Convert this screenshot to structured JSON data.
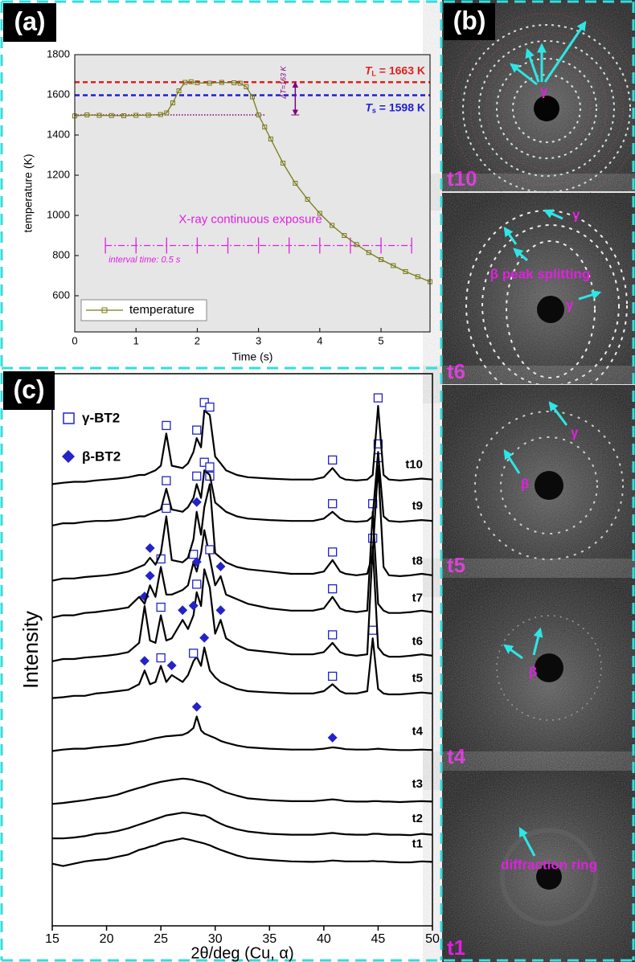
{
  "panel_labels": {
    "a": "(a)",
    "b": "(b)",
    "c": "(c)"
  },
  "chart_data": [
    {
      "type": "line",
      "x_label": "Time (s)",
      "y_label": "temperature (K)",
      "xlim": [
        0,
        5.8
      ],
      "ylim": [
        420,
        1800
      ],
      "xticks": [
        0,
        1,
        2,
        3,
        4,
        5
      ],
      "yticks": [
        600,
        800,
        1000,
        1200,
        1400,
        1600,
        1800
      ],
      "background": "#e6e6e6",
      "legend": "lower left",
      "series": [
        {
          "name": "temperature",
          "color": "#7a7a1a",
          "x": [
            0,
            0.2,
            0.4,
            0.6,
            0.8,
            1.0,
            1.2,
            1.4,
            1.5,
            1.6,
            1.7,
            1.8,
            1.9,
            2.0,
            2.2,
            2.4,
            2.6,
            2.7,
            2.8,
            2.9,
            3.0,
            3.1,
            3.2,
            3.4,
            3.6,
            3.8,
            4.0,
            4.2,
            4.4,
            4.6,
            4.8,
            5.0,
            5.2,
            5.4,
            5.6,
            5.8
          ],
          "values": [
            1495,
            1500,
            1498,
            1497,
            1496,
            1498,
            1499,
            1502,
            1510,
            1560,
            1620,
            1662,
            1665,
            1660,
            1658,
            1662,
            1660,
            1658,
            1640,
            1590,
            1500,
            1440,
            1380,
            1260,
            1160,
            1080,
            1010,
            950,
            900,
            855,
            815,
            780,
            750,
            720,
            695,
            670
          ]
        }
      ],
      "reference_lines": [
        {
          "label": "T",
          "label_sub": "L",
          "label_rest": " = 1663 K",
          "value": 1663,
          "color": "#e02020"
        },
        {
          "label": "T",
          "label_sub": "s",
          "label_rest": " = 1598 K",
          "value": 1598,
          "color": "#2020d0"
        },
        {
          "value": 1500,
          "color": "#800080",
          "xlim": [
            0,
            3.1
          ]
        }
      ],
      "delta_t": {
        "label": "ΔT=163 K",
        "range": [
          1500,
          1663
        ],
        "x": 3.6,
        "color": "#800080"
      },
      "exposure": {
        "label": "X-ray continuous exposure",
        "note": "interval time: 0.5 s",
        "y": 850,
        "xlim": [
          0.5,
          5.5
        ],
        "ticks": [
          0.5,
          1,
          1.5,
          2,
          2.5,
          3,
          3.5,
          4,
          4.5,
          5,
          5.5
        ],
        "color": "#e020e0"
      }
    },
    {
      "type": "waterfall",
      "x_label": "2θ/deg (Cu, α)",
      "y_label": "Intensity",
      "xlim": [
        15,
        50
      ],
      "ylim": [
        0,
        12
      ],
      "xticks": [
        15,
        20,
        25,
        30,
        35,
        40,
        45,
        50
      ],
      "legend": [
        {
          "name": "γ-BT2",
          "marker": "square",
          "color": "#2323c8"
        },
        {
          "name": "β-BT2",
          "marker": "diamond",
          "color": "#2323c8"
        }
      ],
      "x": [
        15,
        16,
        17,
        18,
        19,
        20,
        21,
        22,
        23,
        23.5,
        24,
        24.5,
        25,
        25.5,
        26,
        27,
        27.5,
        28,
        28.3,
        28.7,
        29,
        29.5,
        30,
        30.5,
        31,
        32,
        33,
        35,
        37,
        39,
        40,
        40.8,
        41.5,
        42,
        43,
        44,
        44.5,
        45,
        45.5,
        46,
        47,
        48,
        49,
        50
      ],
      "series": [
        {
          "name": "t1",
          "color": "#000000",
          "offset": 1.35,
          "values": [
            0,
            -0.05,
            0,
            0.05,
            0.08,
            0.1,
            0.15,
            0.2,
            0.3,
            0.33,
            0.37,
            0.4,
            0.45,
            0.48,
            0.5,
            0.55,
            0.53,
            0.5,
            0.48,
            0.46,
            0.44,
            0.4,
            0.35,
            0.3,
            0.26,
            0.18,
            0.12,
            0.08,
            0.05,
            0.04,
            0.05,
            0.07,
            0.06,
            0.05,
            0.05,
            0.05,
            0.06,
            0.05,
            0.05,
            0.04,
            0.03,
            0.03,
            0.05,
            0.04
          ]
        },
        {
          "name": "t2",
          "color": "#000000",
          "offset": 1.9,
          "values": [
            0,
            0,
            0.02,
            0.05,
            0.1,
            0.12,
            0.16,
            0.22,
            0.3,
            0.34,
            0.38,
            0.42,
            0.46,
            0.5,
            0.52,
            0.56,
            0.55,
            0.53,
            0.52,
            0.5,
            0.5,
            0.45,
            0.38,
            0.32,
            0.27,
            0.2,
            0.15,
            0.1,
            0.08,
            0.08,
            0.1,
            0.12,
            0.1,
            0.09,
            0.08,
            0.08,
            0.1,
            0.1,
            0.09,
            0.08,
            0.08,
            0.07,
            0.1,
            0.08
          ]
        },
        {
          "name": "t3",
          "color": "#000000",
          "offset": 2.65,
          "values": [
            0,
            0.02,
            0.05,
            0.08,
            0.12,
            0.15,
            0.2,
            0.28,
            0.35,
            0.38,
            0.42,
            0.45,
            0.48,
            0.5,
            0.52,
            0.55,
            0.54,
            0.52,
            0.5,
            0.48,
            0.46,
            0.42,
            0.36,
            0.3,
            0.25,
            0.18,
            0.12,
            0.08,
            0.06,
            0.06,
            0.08,
            0.1,
            0.08,
            0.06,
            0.05,
            0.05,
            0.06,
            0.06,
            0.05,
            0.05,
            0.04,
            0.05,
            0.06,
            0.05
          ]
        },
        {
          "name": "t4",
          "color": "#000000",
          "offset": 3.8,
          "values": [
            0,
            0.03,
            0.05,
            0.05,
            0.08,
            0.1,
            0.12,
            0.15,
            0.2,
            0.22,
            0.25,
            0.28,
            0.3,
            0.32,
            0.33,
            0.35,
            0.4,
            0.5,
            0.75,
            0.45,
            0.38,
            0.33,
            0.28,
            0.22,
            0.18,
            0.12,
            0.08,
            0.05,
            0.03,
            0.03,
            0.05,
            0.08,
            0.06,
            0.04,
            0.03,
            0.03,
            0.04,
            0.05,
            0.04,
            0.03,
            0.02,
            0.02,
            0.03,
            0.02
          ],
          "beta_peaks": [
            28.3,
            40.8
          ]
        },
        {
          "name": "t5",
          "color": "#000000",
          "offset": 4.95,
          "values": [
            0,
            0.02,
            0.05,
            0.05,
            0.1,
            0.12,
            0.15,
            0.18,
            0.3,
            0.6,
            0.3,
            0.35,
            0.7,
            0.35,
            0.5,
            0.35,
            0.5,
            0.8,
            0.9,
            0.7,
            1.1,
            0.6,
            0.45,
            0.35,
            0.3,
            0.2,
            0.15,
            0.12,
            0.1,
            0.1,
            0.15,
            0.3,
            0.15,
            0.1,
            0.1,
            0.15,
            1.3,
            0.2,
            0.1,
            0.08,
            0.08,
            0.1,
            0.12,
            0.1
          ],
          "gamma_peaks": [
            25,
            28,
            40.8,
            44.5
          ],
          "beta_peaks": [
            23.5,
            26,
            29
          ]
        },
        {
          "name": "t6",
          "color": "#000000",
          "offset": 5.75,
          "values": [
            0,
            0.05,
            0.05,
            0.08,
            0.1,
            0.12,
            0.15,
            0.2,
            0.4,
            1.2,
            0.45,
            0.4,
            1.0,
            0.45,
            0.5,
            0.9,
            0.7,
            1.0,
            1.5,
            1.2,
            2.0,
            1.6,
            0.6,
            0.9,
            0.5,
            0.35,
            0.25,
            0.2,
            0.15,
            0.15,
            0.2,
            0.4,
            0.2,
            0.15,
            0.12,
            0.15,
            2.5,
            0.3,
            0.15,
            0.1,
            0.1,
            0.12,
            0.15,
            0.12
          ],
          "gamma_peaks": [
            25,
            28.3,
            40.8,
            44.5
          ],
          "beta_peaks": [
            23.5,
            27,
            28,
            30.5
          ]
        },
        {
          "name": "t7",
          "color": "#000000",
          "offset": 6.7,
          "values": [
            0,
            0.05,
            0.05,
            0.1,
            0.12,
            0.15,
            0.18,
            0.22,
            0.45,
            0.3,
            0.7,
            0.45,
            1.1,
            0.5,
            0.5,
            0.6,
            0.7,
            1.2,
            1.0,
            1.4,
            1.9,
            1.3,
            0.7,
            0.9,
            0.5,
            0.4,
            0.3,
            0.2,
            0.15,
            0.15,
            0.2,
            0.45,
            0.2,
            0.15,
            0.12,
            0.15,
            2.3,
            0.3,
            0.15,
            0.1,
            0.1,
            0.12,
            0.15,
            0.12
          ],
          "gamma_peaks": [
            25,
            28,
            29.5,
            40.8,
            44.5
          ],
          "beta_peaks": [
            24,
            28.3,
            30.5
          ]
        },
        {
          "name": "t8",
          "color": "#000000",
          "offset": 7.5,
          "values": [
            0,
            0.05,
            0.05,
            0.08,
            0.1,
            0.12,
            0.15,
            0.2,
            0.3,
            0.35,
            0.5,
            0.35,
            0.6,
            1.4,
            0.45,
            0.4,
            0.5,
            0.9,
            1.5,
            1.0,
            1.6,
            2.1,
            0.6,
            0.5,
            0.4,
            0.3,
            0.25,
            0.2,
            0.15,
            0.15,
            0.2,
            0.45,
            0.2,
            0.15,
            0.12,
            0.15,
            0.6,
            2.5,
            0.3,
            0.12,
            0.1,
            0.12,
            0.15,
            0.12
          ],
          "gamma_peaks": [
            25.5,
            29.5,
            40.8,
            45
          ],
          "beta_peaks": [
            24,
            28.3
          ]
        },
        {
          "name": "t9",
          "color": "#000000",
          "offset": 8.7,
          "values": [
            0,
            0.05,
            0.05,
            0.08,
            0.1,
            0.1,
            0.12,
            0.15,
            0.2,
            0.2,
            0.25,
            0.3,
            0.35,
            0.8,
            0.35,
            0.3,
            0.4,
            0.6,
            0.9,
            0.6,
            1.2,
            1.1,
            0.5,
            0.4,
            0.3,
            0.2,
            0.15,
            0.12,
            0.1,
            0.1,
            0.15,
            0.3,
            0.15,
            0.1,
            0.08,
            0.1,
            0.2,
            1.6,
            0.2,
            0.1,
            0.08,
            0.1,
            0.12,
            0.1
          ],
          "gamma_peaks": [
            25.5,
            28.3,
            29,
            29.5,
            40.8,
            45
          ]
        },
        {
          "name": "t10",
          "color": "#000000",
          "offset": 9.6,
          "values": [
            0,
            0.03,
            0.05,
            0.05,
            0.08,
            0.1,
            0.12,
            0.15,
            0.2,
            0.2,
            0.25,
            0.3,
            0.4,
            1.1,
            0.4,
            0.35,
            0.45,
            0.7,
            1.0,
            0.8,
            1.6,
            1.5,
            0.6,
            0.45,
            0.3,
            0.2,
            0.15,
            0.12,
            0.1,
            0.1,
            0.15,
            0.35,
            0.15,
            0.1,
            0.08,
            0.1,
            0.2,
            1.7,
            0.2,
            0.1,
            0.08,
            0.1,
            0.12,
            0.1
          ],
          "gamma_peaks": [
            25.5,
            28.3,
            29,
            29.5,
            40.8,
            45
          ]
        }
      ]
    }
  ],
  "diffraction_images": [
    {
      "time": "t10",
      "labels": [
        "γ"
      ]
    },
    {
      "time": "t6",
      "labels": [
        "γ",
        "β peak splitting",
        "γ"
      ]
    },
    {
      "time": "t5",
      "labels": [
        "γ",
        "β"
      ]
    },
    {
      "time": "t4",
      "labels": [
        "β"
      ]
    },
    {
      "time": "t1",
      "labels": [
        "diffraction ring"
      ]
    }
  ]
}
